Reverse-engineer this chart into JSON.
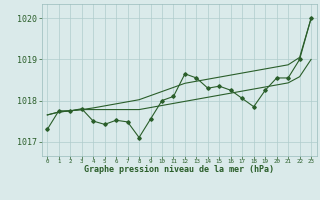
{
  "x": [
    0,
    1,
    2,
    3,
    4,
    5,
    6,
    7,
    8,
    9,
    10,
    11,
    12,
    13,
    14,
    15,
    16,
    17,
    18,
    19,
    20,
    21,
    22,
    23
  ],
  "y_main": [
    1017.3,
    1017.75,
    1017.75,
    1017.8,
    1017.5,
    1017.42,
    1017.52,
    1017.48,
    1017.1,
    1017.55,
    1018.0,
    1018.1,
    1018.65,
    1018.55,
    1018.3,
    1018.35,
    1018.25,
    1018.05,
    1017.85,
    1018.25,
    1018.55,
    1018.55,
    1019.0,
    1020.0
  ],
  "y_upper_line": [
    1017.65,
    1017.72,
    1017.75,
    1017.78,
    1017.82,
    1017.87,
    1017.92,
    1017.97,
    1018.02,
    1018.12,
    1018.22,
    1018.32,
    1018.42,
    1018.47,
    1018.52,
    1018.57,
    1018.62,
    1018.67,
    1018.72,
    1018.77,
    1018.82,
    1018.87,
    1019.05,
    1020.0
  ],
  "y_lower_line": [
    1017.65,
    1017.72,
    1017.75,
    1017.78,
    1017.78,
    1017.78,
    1017.78,
    1017.78,
    1017.78,
    1017.83,
    1017.88,
    1017.93,
    1017.98,
    1018.03,
    1018.08,
    1018.13,
    1018.18,
    1018.23,
    1018.28,
    1018.33,
    1018.38,
    1018.43,
    1018.58,
    1019.0
  ],
  "yticks": [
    1017,
    1018,
    1019,
    1020
  ],
  "ylim": [
    1016.65,
    1020.35
  ],
  "xlim": [
    -0.5,
    23.5
  ],
  "bg_color": "#daeaea",
  "line_color": "#2a5e2a",
  "grid_color": "#b0cccc",
  "xlabel": "Graphe pression niveau de la mer (hPa)"
}
